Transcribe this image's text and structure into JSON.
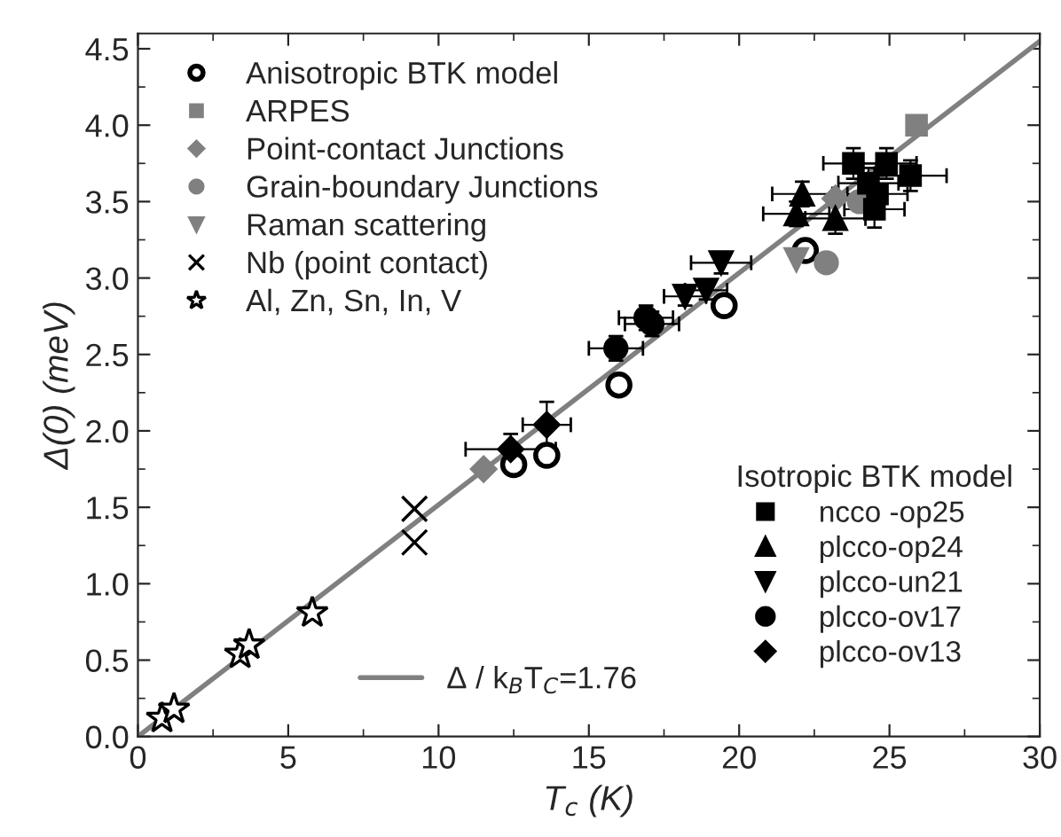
{
  "chart_data": {
    "type": "scatter",
    "xlabel": "T$_{c}$ (K)",
    "ylabel": "Δ(0) (meV)",
    "xlim": [
      0,
      30
    ],
    "ylim": [
      0,
      4.6
    ],
    "xticks": [
      0,
      5,
      10,
      15,
      20,
      25,
      30
    ],
    "yticks": [
      {
        "value": 0,
        "label": "0.0"
      },
      {
        "value": 0.5,
        "label": "0.5"
      },
      {
        "value": 1,
        "label": "1.0"
      },
      {
        "value": 1.5,
        "label": "1.5"
      },
      {
        "value": 2,
        "label": "2.0"
      },
      {
        "value": 2.5,
        "label": "2.5"
      },
      {
        "value": 3,
        "label": "3.0"
      },
      {
        "value": 3.5,
        "label": "3.5"
      },
      {
        "value": 4,
        "label": "4.0"
      },
      {
        "value": 4.5,
        "label": "4.5"
      }
    ],
    "grid": false,
    "legend": "top left",
    "legend_title": "Isotropic BTK model",
    "series": [
      {
        "name": "Anisotropic BTK model",
        "marker": "open circle",
        "color": "#000000",
        "x": [
          12.5,
          13.6,
          16.0,
          19.5,
          22.2
        ],
        "values": [
          1.78,
          1.84,
          2.3,
          2.82,
          3.18
        ]
      },
      {
        "name": "ARPES",
        "marker": "square",
        "color": "#808080",
        "x": [
          25.9
        ],
        "values": [
          4.0
        ]
      },
      {
        "name": "Point-contact Junctions",
        "marker": "diamond",
        "color": "#808080",
        "x": [
          11.5,
          23.2
        ],
        "values": [
          1.75,
          3.52
        ]
      },
      {
        "name": "Grain-boundary Junctions",
        "marker": "circle",
        "color": "#808080",
        "x": [
          24.0,
          22.9
        ],
        "values": [
          3.5,
          3.1
        ]
      },
      {
        "name": "Raman scattering",
        "marker": "triangle_down",
        "color": "#808080",
        "x": [
          21.9
        ],
        "values": [
          3.12
        ]
      },
      {
        "name": "Nb (point contact)",
        "marker": "cross",
        "color": "#000000",
        "x": [
          9.2,
          9.2
        ],
        "values": [
          1.49,
          1.27
        ]
      },
      {
        "name": "Al, Zn, Sn, In, V",
        "marker": "star",
        "color": "#000000",
        "x": [
          0.8,
          1.2,
          3.4,
          3.7,
          5.8
        ],
        "values": [
          0.12,
          0.18,
          0.54,
          0.6,
          0.81
        ]
      },
      {
        "name": "ncco -op25",
        "marker": "square",
        "color": "#000000",
        "x": [
          23.8,
          24.9,
          25.7,
          24.3,
          24.6,
          24.5
        ],
        "values": [
          3.75,
          3.75,
          3.67,
          3.62,
          3.55,
          3.45
        ],
        "xerrors": [
          1,
          1,
          1.2,
          1,
          1,
          1
        ],
        "errors": [
          0.1,
          0.1,
          0.1,
          0.1,
          0.12,
          0.12
        ]
      },
      {
        "name": "plcco-op24",
        "marker": "triangle",
        "color": "#000000",
        "x": [
          22.1,
          21.9,
          23.2
        ],
        "values": [
          3.55,
          3.42,
          3.39
        ],
        "xerrors": [
          1,
          1.1,
          1
        ],
        "errors": [
          0.08,
          0.08,
          0.1
        ]
      },
      {
        "name": "plcco-un21",
        "marker": "triangle_down",
        "color": "#000000",
        "x": [
          19.4,
          18.9,
          18.2
        ],
        "values": [
          3.1,
          2.92,
          2.88
        ],
        "xerrors": [
          1,
          0.7,
          0.7
        ],
        "errors": [
          0.07,
          0.06,
          0.06
        ]
      },
      {
        "name": "plcco-ov17",
        "marker": "circle",
        "color": "#000000",
        "x": [
          15.9,
          16.9,
          17.1
        ],
        "values": [
          2.54,
          2.74,
          2.7
        ],
        "xerrors": [
          0.9,
          0.9,
          0.9
        ],
        "errors": [
          0.08,
          0.08,
          0.08
        ]
      },
      {
        "name": "plcco-ov13",
        "marker": "diamond",
        "color": "#000000",
        "x": [
          13.6,
          12.4
        ],
        "values": [
          2.04,
          1.88
        ],
        "xerrors": [
          0.8,
          1.5
        ],
        "errors": [
          0.15,
          0.1
        ]
      },
      {
        "name": "Δ / k$_{B}$T$_{C}$=1.76",
        "type": "line",
        "color": "#808080",
        "line_style": "solid",
        "x": [
          0,
          30
        ],
        "values": [
          0,
          4.55
        ]
      }
    ]
  }
}
